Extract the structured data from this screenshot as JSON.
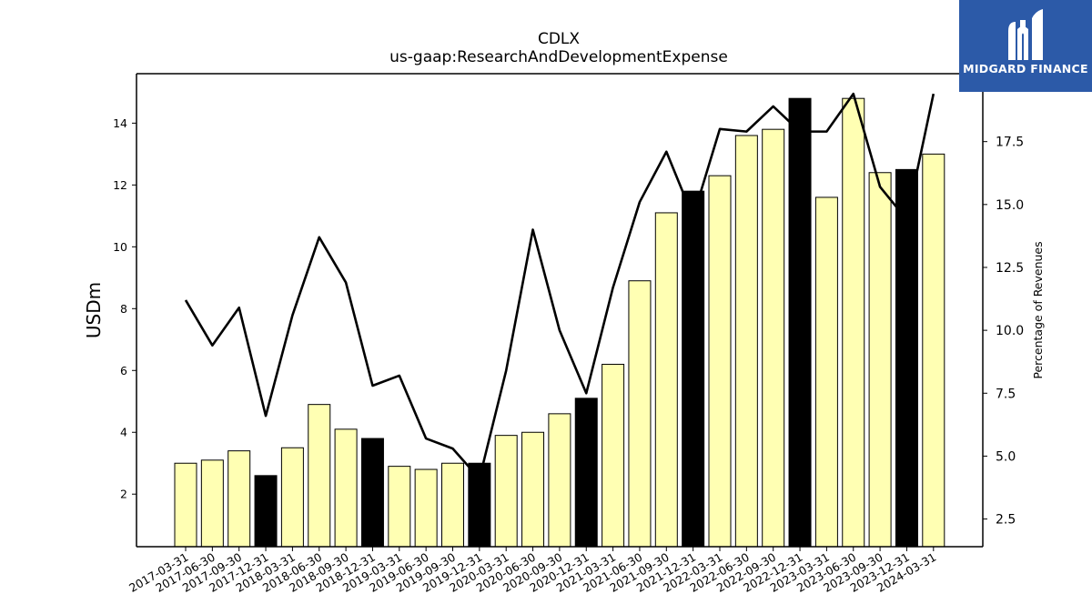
{
  "brand": {
    "name": "MIDGARD FINANCE",
    "bg_color": "#2c5aa8",
    "icon": "midgard-finance-logo-icon"
  },
  "chart_data": {
    "type": "bar",
    "title": "CDLX",
    "subtitle": "us-gaap:ResearchAndDevelopmentExpense",
    "ylabel": "USDm",
    "ylabel_right": "Percentage of Revenues",
    "ylim": [
      0.3,
      15.6
    ],
    "y2lim": [
      1.4,
      20.2
    ],
    "yticks": [
      2,
      4,
      6,
      8,
      10,
      12,
      14
    ],
    "y2ticks": [
      2.5,
      5.0,
      7.5,
      10.0,
      12.5,
      15.0,
      17.5
    ],
    "categories": [
      "2017-03-31",
      "2017-06-30",
      "2017-09-30",
      "2017-12-31",
      "2018-03-31",
      "2018-06-30",
      "2018-09-30",
      "2018-12-31",
      "2019-03-31",
      "2019-06-30",
      "2019-09-30",
      "2019-12-31",
      "2020-03-31",
      "2020-06-30",
      "2020-09-30",
      "2020-12-31",
      "2021-03-31",
      "2021-06-30",
      "2021-09-30",
      "2021-12-31",
      "2022-03-31",
      "2022-06-30",
      "2022-09-30",
      "2022-12-31",
      "2023-03-31",
      "2023-06-30",
      "2023-09-30",
      "2023-12-31",
      "2024-03-31"
    ],
    "series": [
      {
        "type": "bar",
        "axis": "left",
        "values": [
          3.0,
          3.1,
          3.4,
          2.6,
          3.5,
          4.9,
          4.1,
          3.8,
          2.9,
          2.8,
          3.0,
          3.0,
          3.9,
          4.0,
          4.6,
          5.1,
          6.2,
          8.9,
          11.1,
          11.8,
          12.3,
          13.6,
          13.8,
          14.8,
          11.6,
          14.8,
          12.4,
          12.5,
          13.0
        ]
      },
      {
        "type": "line",
        "axis": "right",
        "values": [
          11.2,
          9.4,
          10.9,
          6.6,
          10.6,
          13.7,
          11.9,
          7.8,
          8.2,
          5.7,
          5.3,
          4.1,
          8.4,
          14.0,
          10.0,
          7.5,
          11.7,
          15.1,
          17.1,
          14.5,
          18.0,
          17.9,
          18.9,
          17.9,
          17.9,
          19.4,
          15.7,
          14.4,
          19.4
        ]
      }
    ],
    "colors": {
      "bar_fill": "#ffffb3",
      "bar_highlight_fill": "#000000",
      "bar_stroke": "#000000",
      "line": "#000000"
    },
    "highlight_quarter": "12-31",
    "grid": false
  }
}
